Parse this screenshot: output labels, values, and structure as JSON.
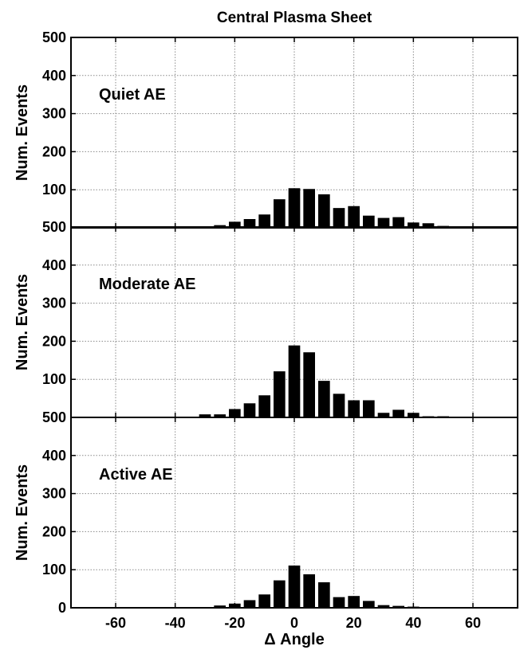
{
  "chart_data": {
    "type": "bar",
    "title": "Central Plasma Sheet",
    "xlabel": "Δ Angle",
    "ylabel": "Num. Events",
    "xlim": [
      -75,
      75
    ],
    "ylim": [
      0,
      500
    ],
    "xticks": [
      -60,
      -40,
      -20,
      0,
      20,
      40,
      60
    ],
    "yticks": [
      0,
      100,
      200,
      300,
      400,
      500
    ],
    "grid": true,
    "bar_color": "#000000",
    "bin_width": 5,
    "x": [
      -70,
      -65,
      -60,
      -55,
      -50,
      -45,
      -40,
      -35,
      -30,
      -25,
      -20,
      -15,
      -10,
      -5,
      0,
      5,
      10,
      15,
      20,
      25,
      30,
      35,
      40,
      45,
      50,
      55,
      60,
      65,
      70
    ],
    "panels": [
      {
        "label": "Quiet AE",
        "values": [
          0,
          0,
          0,
          0,
          0,
          2,
          1,
          3,
          3,
          7,
          16,
          23,
          35,
          75,
          104,
          102,
          88,
          52,
          57,
          32,
          26,
          28,
          14,
          12,
          5,
          4,
          3,
          1,
          2
        ]
      },
      {
        "label": "Moderate AE",
        "values": [
          0,
          0,
          0,
          0,
          0,
          0,
          0,
          0,
          8,
          8,
          22,
          37,
          58,
          121,
          189,
          171,
          96,
          62,
          45,
          45,
          12,
          20,
          12,
          3,
          3,
          2,
          2,
          0,
          0
        ]
      },
      {
        "label": "Active AE",
        "values": [
          0,
          0,
          0,
          0,
          0,
          0,
          0,
          2,
          1,
          6,
          11,
          20,
          35,
          72,
          111,
          88,
          67,
          28,
          31,
          18,
          7,
          5,
          3,
          2,
          1,
          1,
          0,
          0,
          0
        ]
      }
    ]
  }
}
